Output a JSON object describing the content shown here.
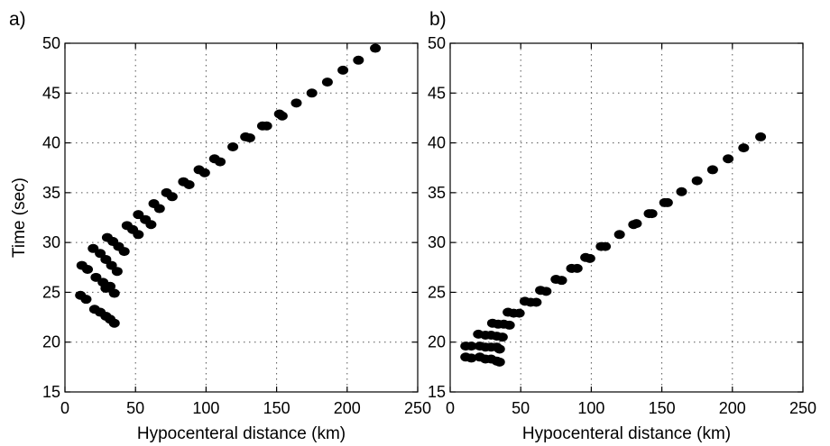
{
  "figure": {
    "ylabel": "Time (sec)"
  },
  "chart_data": [
    {
      "type": "scatter",
      "panel_label": "a)",
      "xlabel": "Hypocenteral distance (km)",
      "ylabel": "Time (sec)",
      "xlim": [
        0,
        250
      ],
      "ylim": [
        15,
        50
      ],
      "xticks": [
        0,
        50,
        100,
        150,
        200,
        250
      ],
      "yticks": [
        15,
        20,
        25,
        30,
        35,
        40,
        45,
        50
      ],
      "grid": true,
      "marker_color": "#000000",
      "points": [
        [
          11,
          24.7
        ],
        [
          15,
          24.3
        ],
        [
          21,
          23.3
        ],
        [
          25,
          23.0
        ],
        [
          29,
          22.6
        ],
        [
          32,
          22.3
        ],
        [
          35,
          21.9
        ],
        [
          31,
          25.5
        ],
        [
          35,
          24.9
        ],
        [
          29,
          25.4
        ],
        [
          12,
          27.7
        ],
        [
          16,
          27.3
        ],
        [
          22,
          26.5
        ],
        [
          27,
          26.0
        ],
        [
          32,
          25.6
        ],
        [
          20,
          29.4
        ],
        [
          25,
          28.9
        ],
        [
          29,
          28.3
        ],
        [
          33,
          27.7
        ],
        [
          37,
          27.1
        ],
        [
          30,
          30.5
        ],
        [
          34,
          30.1
        ],
        [
          38,
          29.6
        ],
        [
          42,
          29.1
        ],
        [
          44,
          31.7
        ],
        [
          48,
          31.3
        ],
        [
          52,
          30.8
        ],
        [
          52,
          32.8
        ],
        [
          57,
          32.3
        ],
        [
          61,
          31.8
        ],
        [
          63,
          33.9
        ],
        [
          67,
          33.4
        ],
        [
          72,
          35.0
        ],
        [
          76,
          34.6
        ],
        [
          84,
          36.1
        ],
        [
          88,
          35.8
        ],
        [
          95,
          37.3
        ],
        [
          99,
          37.0
        ],
        [
          106,
          38.4
        ],
        [
          110,
          38.1
        ],
        [
          119,
          39.6
        ],
        [
          128,
          40.6
        ],
        [
          131,
          40.5
        ],
        [
          140,
          41.7
        ],
        [
          143,
          41.7
        ],
        [
          152,
          42.9
        ],
        [
          154,
          42.7
        ],
        [
          164,
          44.0
        ],
        [
          175,
          45.0
        ],
        [
          186,
          46.1
        ],
        [
          197,
          47.3
        ],
        [
          208,
          48.3
        ],
        [
          220,
          49.5
        ]
      ]
    },
    {
      "type": "scatter",
      "panel_label": "b)",
      "xlabel": "Hypocenteral distance (km)",
      "ylabel": "",
      "xlim": [
        0,
        250
      ],
      "ylim": [
        15,
        50
      ],
      "xticks": [
        0,
        50,
        100,
        150,
        200,
        250
      ],
      "yticks": [
        15,
        20,
        25,
        30,
        35,
        40,
        45,
        50
      ],
      "grid": true,
      "marker_color": "#000000",
      "points": [
        [
          11,
          18.5
        ],
        [
          15,
          18.4
        ],
        [
          21,
          18.5
        ],
        [
          25,
          18.3
        ],
        [
          29,
          18.3
        ],
        [
          33,
          18.1
        ],
        [
          35,
          18.0
        ],
        [
          11,
          19.6
        ],
        [
          15,
          19.6
        ],
        [
          21,
          19.6
        ],
        [
          25,
          19.5
        ],
        [
          29,
          19.5
        ],
        [
          33,
          19.5
        ],
        [
          35,
          19.3
        ],
        [
          20,
          20.8
        ],
        [
          25,
          20.7
        ],
        [
          29,
          20.7
        ],
        [
          33,
          20.6
        ],
        [
          37,
          20.5
        ],
        [
          30,
          21.9
        ],
        [
          34,
          21.8
        ],
        [
          38,
          21.8
        ],
        [
          42,
          21.7
        ],
        [
          41,
          23.0
        ],
        [
          45,
          22.9
        ],
        [
          49,
          22.9
        ],
        [
          53,
          24.1
        ],
        [
          57,
          24.0
        ],
        [
          61,
          24.0
        ],
        [
          64,
          25.2
        ],
        [
          68,
          25.1
        ],
        [
          75,
          26.3
        ],
        [
          79,
          26.2
        ],
        [
          86,
          27.4
        ],
        [
          90,
          27.4
        ],
        [
          96,
          28.5
        ],
        [
          99,
          28.4
        ],
        [
          107,
          29.6
        ],
        [
          110,
          29.6
        ],
        [
          120,
          30.8
        ],
        [
          130,
          31.8
        ],
        [
          132,
          31.9
        ],
        [
          141,
          32.9
        ],
        [
          143,
          32.9
        ],
        [
          152,
          34.0
        ],
        [
          154,
          34.0
        ],
        [
          164,
          35.1
        ],
        [
          175,
          36.2
        ],
        [
          186,
          37.3
        ],
        [
          197,
          38.4
        ],
        [
          208,
          39.5
        ],
        [
          220,
          40.6
        ]
      ]
    }
  ]
}
